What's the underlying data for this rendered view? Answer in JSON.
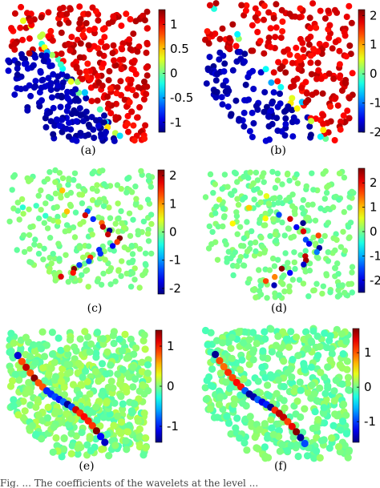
{
  "chart_data": [
    {
      "type": "scatter",
      "panel": "a",
      "caption": "(a)",
      "colorbar": {
        "vmin": -1.2,
        "vmax": 1.3,
        "ticks": [
          1,
          0.5,
          0,
          -0.5,
          -1
        ],
        "labels": [
          "1",
          "0.5",
          "0",
          "-0.5",
          "-1"
        ]
      },
      "color_mode": "split",
      "cut": "diag"
    },
    {
      "type": "scatter",
      "panel": "b",
      "caption": "(b)",
      "colorbar": {
        "vmin": -2,
        "vmax": 2.2,
        "ticks": [
          2,
          1,
          0,
          -1,
          -2
        ],
        "labels": [
          "2",
          "1",
          "0",
          "-1",
          "-2"
        ]
      },
      "color_mode": "split",
      "cut": "diag"
    },
    {
      "type": "scatter",
      "panel": "c",
      "caption": "(c)",
      "colorbar": {
        "vmin": -2.2,
        "vmax": 2.2,
        "ticks": [
          2,
          1,
          0,
          -1,
          -2
        ],
        "labels": [
          "2",
          "1",
          "0",
          "-1",
          "-2"
        ]
      },
      "color_mode": "sparse"
    },
    {
      "type": "scatter",
      "panel": "d",
      "caption": "(d)",
      "colorbar": {
        "vmin": -2.5,
        "vmax": 2.6,
        "ticks": [
          2,
          1,
          0,
          -1,
          -2
        ],
        "labels": [
          "2",
          "1",
          "0",
          "-1",
          "-2"
        ]
      },
      "color_mode": "sparse"
    },
    {
      "type": "scatter",
      "panel": "e",
      "caption": "(e)",
      "colorbar": {
        "vmin": -1.4,
        "vmax": 1.4,
        "ticks": [
          1,
          0,
          -1
        ],
        "labels": [
          "1",
          "0",
          "-1"
        ]
      },
      "color_mode": "curve"
    },
    {
      "type": "scatter",
      "panel": "f",
      "caption": "(f)",
      "colorbar": {
        "vmin": -1.6,
        "vmax": 1.7,
        "ticks": [
          1,
          0,
          -1
        ],
        "labels": [
          "1",
          "0",
          "-1"
        ]
      },
      "color_mode": "curve"
    }
  ],
  "footer": {
    "text": "Fig. ...  The coefficients of the wavelets at the level  ..."
  },
  "colors": {
    "colormap": "jet",
    "background": "#ffffff",
    "neutral_point": "#8ee68a"
  }
}
